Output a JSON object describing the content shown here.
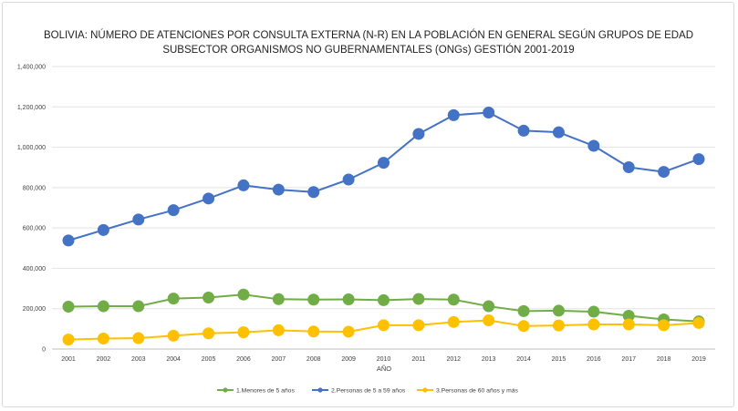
{
  "chart_data": {
    "type": "line",
    "title_line1": "BOLIVIA: NÚMERO DE ATENCIONES POR CONSULTA EXTERNA (N-R) EN LA POBLACIÓN EN GENERAL SEGÚN GRUPOS DE EDAD",
    "title_line2": "SUBSECTOR ORGANISMOS NO GUBERNAMENTALES (ONGs) GESTIÓN 2001-2019",
    "xlabel": "AÑO",
    "ylabel": "",
    "ylim": [
      0,
      1400000
    ],
    "y_ticks": [
      "0",
      "200,000",
      "400,000",
      "600,000",
      "800,000",
      "1,000,000",
      "1,200,000",
      "1,400,000"
    ],
    "y_tick_values": [
      0,
      200000,
      400000,
      600000,
      800000,
      1000000,
      1200000,
      1400000
    ],
    "grid": true,
    "legend_position": "bottom",
    "categories": [
      "2001",
      "2002",
      "2003",
      "2004",
      "2005",
      "2006",
      "2007",
      "2008",
      "2009",
      "2010",
      "2011",
      "2012",
      "2013",
      "2014",
      "2015",
      "2016",
      "2017",
      "2018",
      "2019"
    ],
    "series": [
      {
        "name": "1.Menores de 5 años",
        "color": "#70ad47",
        "values": [
          210000,
          212000,
          212000,
          250000,
          255000,
          270000,
          247000,
          245000,
          246000,
          242000,
          248000,
          245000,
          212000,
          188000,
          190000,
          185000,
          165000,
          147000,
          137000
        ]
      },
      {
        "name": "2.Personas de 5 a 59 años",
        "color": "#4472c4",
        "values": [
          538000,
          590000,
          642000,
          688000,
          746000,
          811000,
          790000,
          778000,
          840000,
          923000,
          1066000,
          1159000,
          1172000,
          1082000,
          1074000,
          1007000,
          901000,
          878000,
          941000
        ]
      },
      {
        "name": "3.Personas de 60 años y más",
        "color": "#ffc000",
        "values": [
          47000,
          52000,
          54000,
          66000,
          78000,
          83000,
          93000,
          87000,
          86000,
          118000,
          118000,
          134000,
          142000,
          114000,
          117000,
          122000,
          122000,
          118000,
          129000
        ]
      }
    ]
  }
}
